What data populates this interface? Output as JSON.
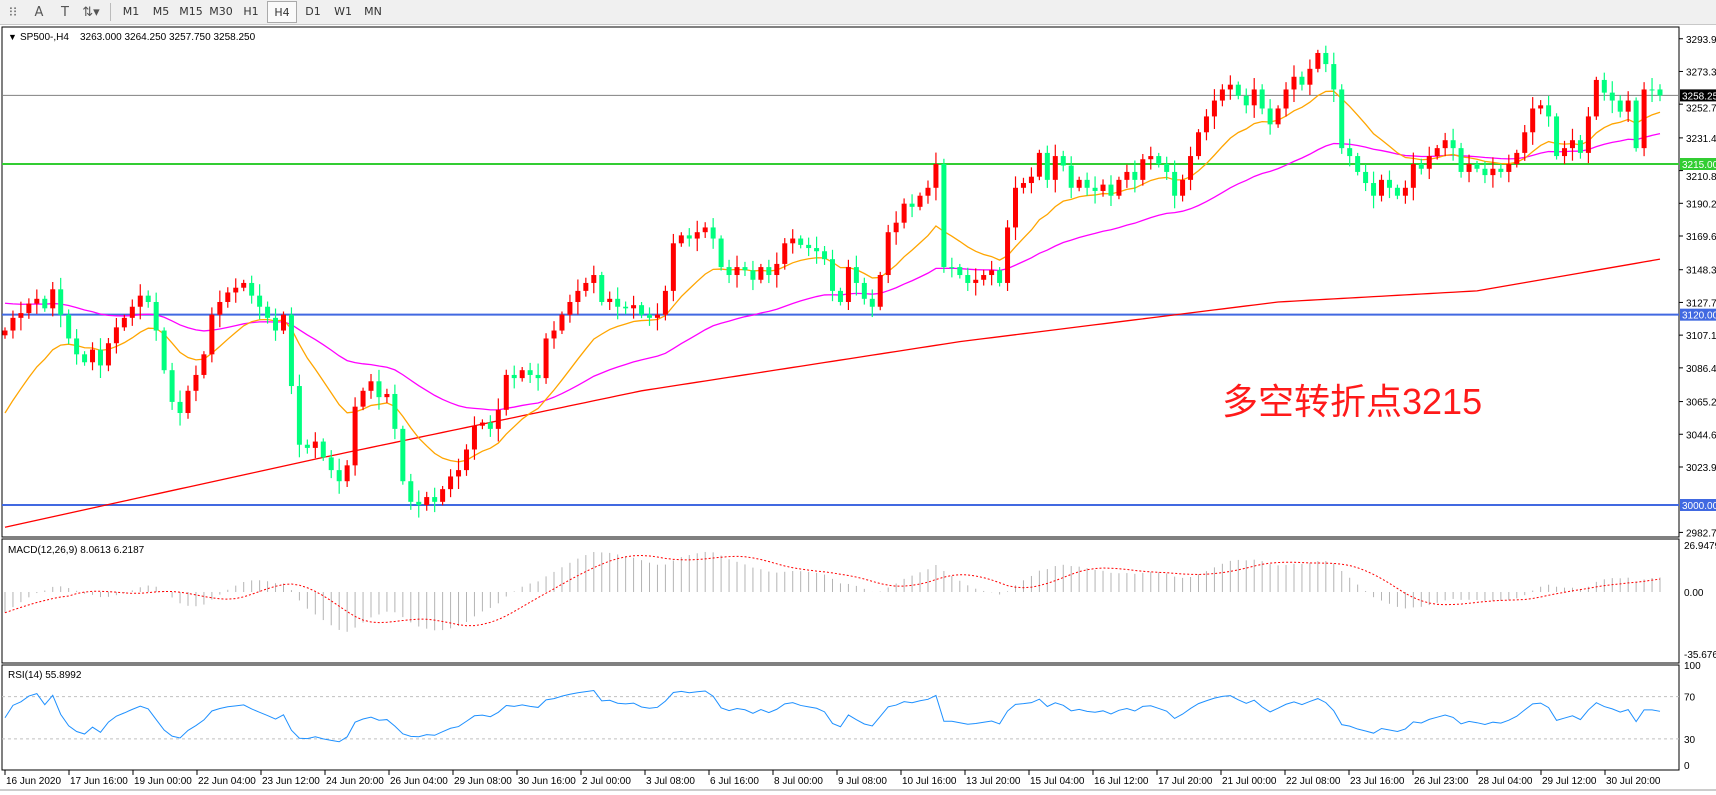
{
  "toolbar": {
    "icons": [
      "periods-grid-icon",
      "text-label-icon",
      "text-box-icon",
      "arrows-icon"
    ],
    "timeframes": [
      "M1",
      "M5",
      "M15",
      "M30",
      "H1",
      "H4",
      "D1",
      "W1",
      "MN"
    ],
    "active_timeframe": "H4"
  },
  "header": {
    "symbol": "SP500-,H4",
    "ohlc": "3263.000 3264.250 3257.750 3258.250"
  },
  "price_axis": {
    "labels": [
      "3293.97",
      "3273.35",
      "3252.72",
      "3231.47",
      "3210.85",
      "3190.22",
      "3169.60",
      "3148.35",
      "3127.72",
      "3107.10",
      "3086.47",
      "3065.22",
      "3044.60",
      "3023.97",
      "2982.72"
    ]
  },
  "hlines": [
    {
      "price": 3258.25,
      "label": "3258.25",
      "color": "#808080",
      "label_bg": "#000000"
    },
    {
      "price": 3215.0,
      "label": "3215.00",
      "color": "#32cd32",
      "label_bg": "#32cd32"
    },
    {
      "price": 3120.0,
      "label": "3120.00",
      "color": "#4169e1",
      "label_bg": "#4169e1"
    },
    {
      "price": 3000.0,
      "label": "3000.00",
      "color": "#4169e1",
      "label_bg": "#4169e1"
    }
  ],
  "annotation": "多空转折点3215",
  "time_labels": [
    "16 Jun 2020",
    "17 Jun 16:00",
    "19 Jun 00:00",
    "22 Jun 04:00",
    "23 Jun 12:00",
    "24 Jun 20:00",
    "26 Jun 04:00",
    "29 Jun 08:00",
    "30 Jun 16:00",
    "2 Jul 00:00",
    "3 Jul 08:00",
    "6 Jul 16:00",
    "8 Jul 00:00",
    "9 Jul 08:00",
    "10 Jul 16:00",
    "13 Jul 20:00",
    "15 Jul 04:00",
    "16 Jul 12:00",
    "17 Jul 20:00",
    "21 Jul 00:00",
    "22 Jul 08:00",
    "23 Jul 16:00",
    "26 Jul 23:00",
    "28 Jul 04:00",
    "29 Jul 12:00",
    "30 Jul 20:00"
  ],
  "macd": {
    "label": "MACD(12,26,9) 8.0613 6.2187",
    "axis_labels": [
      "26.9479",
      "0.00",
      "-35.6767"
    ],
    "range": [
      -35.6767,
      26.9479
    ]
  },
  "rsi": {
    "label": "RSI(14) 55.8992",
    "axis_labels": [
      "100",
      "70",
      "30",
      "0"
    ],
    "levels": [
      70,
      30
    ]
  },
  "chart_data": {
    "type": "candlestick",
    "symbol": "SP500-",
    "timeframe": "H4",
    "ylim": [
      2982.72,
      3293.97
    ],
    "up_color": "#ff0000",
    "down_color": "#00ff7f",
    "close": [
      3110,
      3118,
      3121,
      3127,
      3130,
      3124,
      3136,
      3120,
      3105,
      3095,
      3090,
      3098,
      3088,
      3102,
      3112,
      3118,
      3125,
      3132,
      3128,
      3110,
      3085,
      3065,
      3058,
      3072,
      3082,
      3095,
      3120,
      3128,
      3134,
      3137,
      3140,
      3132,
      3125,
      3118,
      3110,
      3120,
      3075,
      3038,
      3036,
      3040,
      3030,
      3022,
      3015,
      3025,
      3062,
      3072,
      3078,
      3068,
      3070,
      3048,
      3015,
      3002,
      3000,
      3005,
      3002,
      3010,
      3018,
      3022,
      3035,
      3050,
      3052,
      3048,
      3060,
      3082,
      3080,
      3085,
      3082,
      3080,
      3105,
      3110,
      3120,
      3128,
      3135,
      3140,
      3145,
      3128,
      3130,
      3125,
      3124,
      3126,
      3120,
      3118,
      3120,
      3135,
      3165,
      3170,
      3168,
      3172,
      3175,
      3168,
      3150,
      3145,
      3150,
      3148,
      3142,
      3150,
      3145,
      3152,
      3165,
      3168,
      3164,
      3162,
      3160,
      3155,
      3135,
      3128,
      3150,
      3140,
      3130,
      3125,
      3145,
      3172,
      3178,
      3190,
      3188,
      3195,
      3200,
      3215,
      3150,
      3150,
      3145,
      3140,
      3142,
      3145,
      3148,
      3140,
      3175,
      3200,
      3203,
      3207,
      3222,
      3205,
      3220,
      3214,
      3200,
      3205,
      3200,
      3198,
      3202,
      3195,
      3205,
      3210,
      3205,
      3218,
      3220,
      3215,
      3210,
      3195,
      3205,
      3220,
      3235,
      3245,
      3255,
      3262,
      3265,
      3258,
      3252,
      3262,
      3250,
      3240,
      3250,
      3262,
      3270,
      3265,
      3275,
      3285,
      3278,
      3262,
      3225,
      3220,
      3210,
      3203,
      3195,
      3205,
      3200,
      3195,
      3200,
      3215,
      3212,
      3220,
      3225,
      3230,
      3225,
      3210,
      3215,
      3212,
      3208,
      3212,
      3210,
      3215,
      3222,
      3235,
      3250,
      3252,
      3245,
      3220,
      3225,
      3230,
      3222,
      3245,
      3268,
      3260,
      3255,
      3248,
      3255,
      3225,
      3262,
      3262,
      3258.25
    ],
    "ma_slow_keypoints": [
      [
        0,
        2986
      ],
      [
        40,
        3030
      ],
      [
        80,
        3072
      ],
      [
        120,
        3103
      ],
      [
        160,
        3128
      ],
      [
        185,
        3135
      ],
      [
        208,
        3155
      ]
    ],
    "ma_colors": {
      "fast": "#ffa500",
      "mid": "#ff00ff",
      "slow": "#ff0000"
    }
  }
}
